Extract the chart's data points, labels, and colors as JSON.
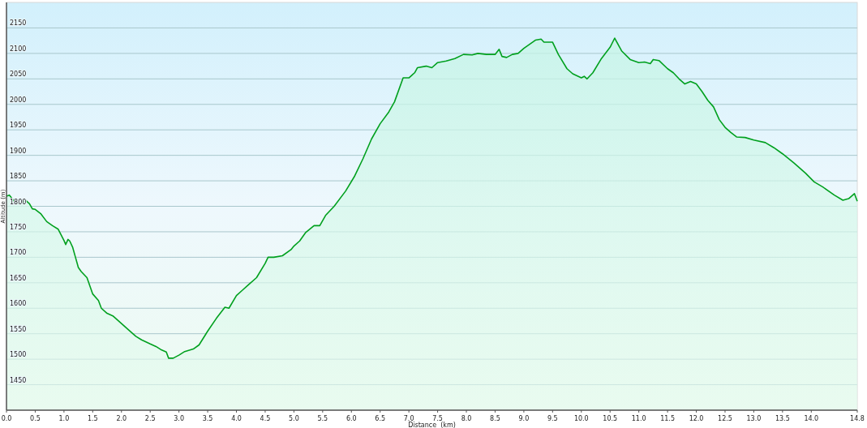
{
  "chart_data": {
    "type": "area",
    "xlabel": "Distance  (km)",
    "ylabel": "Altitude (m)",
    "xlim": [
      0,
      14.8
    ],
    "ylim": [
      1400,
      2200
    ],
    "xticks": [
      {
        "value": 0,
        "label": "0.0"
      },
      {
        "value": 0.5,
        "label": "0.5"
      },
      {
        "value": 1,
        "label": "1.0"
      },
      {
        "value": 1.5,
        "label": "1.5"
      },
      {
        "value": 2,
        "label": "2.0"
      },
      {
        "value": 2.5,
        "label": "2.5"
      },
      {
        "value": 3,
        "label": "3.0"
      },
      {
        "value": 3.5,
        "label": "3.5"
      },
      {
        "value": 4,
        "label": "4.0"
      },
      {
        "value": 4.5,
        "label": "4.5"
      },
      {
        "value": 5,
        "label": "5.0"
      },
      {
        "value": 5.5,
        "label": "5.5"
      },
      {
        "value": 6,
        "label": "6.0"
      },
      {
        "value": 6.5,
        "label": "6.5"
      },
      {
        "value": 7,
        "label": "7.0"
      },
      {
        "value": 7.5,
        "label": "7.5"
      },
      {
        "value": 8,
        "label": "8.0"
      },
      {
        "value": 8.5,
        "label": "8.5"
      },
      {
        "value": 9,
        "label": "9.0"
      },
      {
        "value": 9.5,
        "label": "9.5"
      },
      {
        "value": 10,
        "label": "10.0"
      },
      {
        "value": 10.5,
        "label": "10.5"
      },
      {
        "value": 11,
        "label": "11.0"
      },
      {
        "value": 11.5,
        "label": "11.5"
      },
      {
        "value": 12,
        "label": "12.0"
      },
      {
        "value": 12.5,
        "label": "12.5"
      },
      {
        "value": 13,
        "label": "13.0"
      },
      {
        "value": 13.5,
        "label": "13.5"
      },
      {
        "value": 14,
        "label": "14.0"
      },
      14.8
    ],
    "yticks": [
      1450,
      1500,
      1550,
      1600,
      1650,
      1700,
      1750,
      1800,
      1850,
      1900,
      1950,
      2000,
      2050,
      2100,
      2150
    ],
    "grid": "y",
    "series": [
      {
        "color": "#00a01e",
        "x": [
          0,
          0.05,
          0.15,
          0.25,
          0.33,
          0.4,
          0.45,
          0.5,
          0.6,
          0.7,
          0.8,
          0.9,
          1.0,
          1.03,
          1.07,
          1.1,
          1.15,
          1.2,
          1.25,
          1.3,
          1.4,
          1.5,
          1.6,
          1.65,
          1.75,
          1.85,
          2.0,
          2.15,
          2.25,
          2.35,
          2.5,
          2.6,
          2.7,
          2.78,
          2.82,
          2.9,
          3.0,
          3.1,
          3.25,
          3.35,
          3.5,
          3.65,
          3.8,
          3.87,
          4.0,
          4.1,
          4.2,
          4.35,
          4.5,
          4.55,
          4.65,
          4.8,
          4.95,
          5.0,
          5.1,
          5.2,
          5.35,
          5.45,
          5.55,
          5.7,
          5.9,
          6.05,
          6.2,
          6.35,
          6.5,
          6.65,
          6.75,
          6.9,
          7.0,
          7.1,
          7.15,
          7.3,
          7.4,
          7.5,
          7.65,
          7.8,
          7.95,
          8.1,
          8.2,
          8.35,
          8.5,
          8.57,
          8.62,
          8.7,
          8.8,
          8.9,
          9.0,
          9.1,
          9.2,
          9.3,
          9.35,
          9.5,
          9.6,
          9.75,
          9.85,
          10.0,
          10.05,
          10.1,
          10.2,
          10.35,
          10.5,
          10.58,
          10.7,
          10.85,
          11.0,
          11.1,
          11.2,
          11.25,
          11.35,
          11.5,
          11.6,
          11.7,
          11.8,
          11.9,
          12.0,
          12.1,
          12.2,
          12.3,
          12.4,
          12.5,
          12.6,
          12.7,
          12.85,
          13.0,
          13.2,
          13.35,
          13.5,
          13.7,
          13.9,
          14.05,
          14.2,
          14.4,
          14.55,
          14.65,
          14.75,
          14.8
        ],
        "values": [
          1820,
          1822,
          1808,
          1805,
          1812,
          1805,
          1795,
          1794,
          1785,
          1770,
          1762,
          1755,
          1733,
          1725,
          1735,
          1732,
          1720,
          1700,
          1680,
          1672,
          1660,
          1628,
          1615,
          1600,
          1590,
          1585,
          1570,
          1555,
          1545,
          1538,
          1530,
          1525,
          1518,
          1514,
          1502,
          1502,
          1508,
          1515,
          1520,
          1528,
          1555,
          1580,
          1602,
          1600,
          1625,
          1635,
          1645,
          1660,
          1688,
          1700,
          1700,
          1703,
          1715,
          1722,
          1732,
          1748,
          1762,
          1762,
          1782,
          1800,
          1830,
          1858,
          1893,
          1932,
          1962,
          1985,
          2005,
          2052,
          2052,
          2062,
          2072,
          2075,
          2072,
          2082,
          2085,
          2090,
          2098,
          2097,
          2100,
          2098,
          2098,
          2108,
          2094,
          2092,
          2098,
          2100,
          2110,
          2118,
          2126,
          2128,
          2122,
          2122,
          2098,
          2070,
          2060,
          2052,
          2055,
          2050,
          2062,
          2090,
          2112,
          2130,
          2105,
          2088,
          2082,
          2083,
          2080,
          2088,
          2086,
          2070,
          2062,
          2050,
          2040,
          2045,
          2040,
          2025,
          2008,
          1995,
          1970,
          1955,
          1945,
          1936,
          1935,
          1930,
          1925,
          1915,
          1903,
          1885,
          1865,
          1848,
          1838,
          1822,
          1812,
          1815,
          1825,
          1810
        ]
      }
    ]
  }
}
